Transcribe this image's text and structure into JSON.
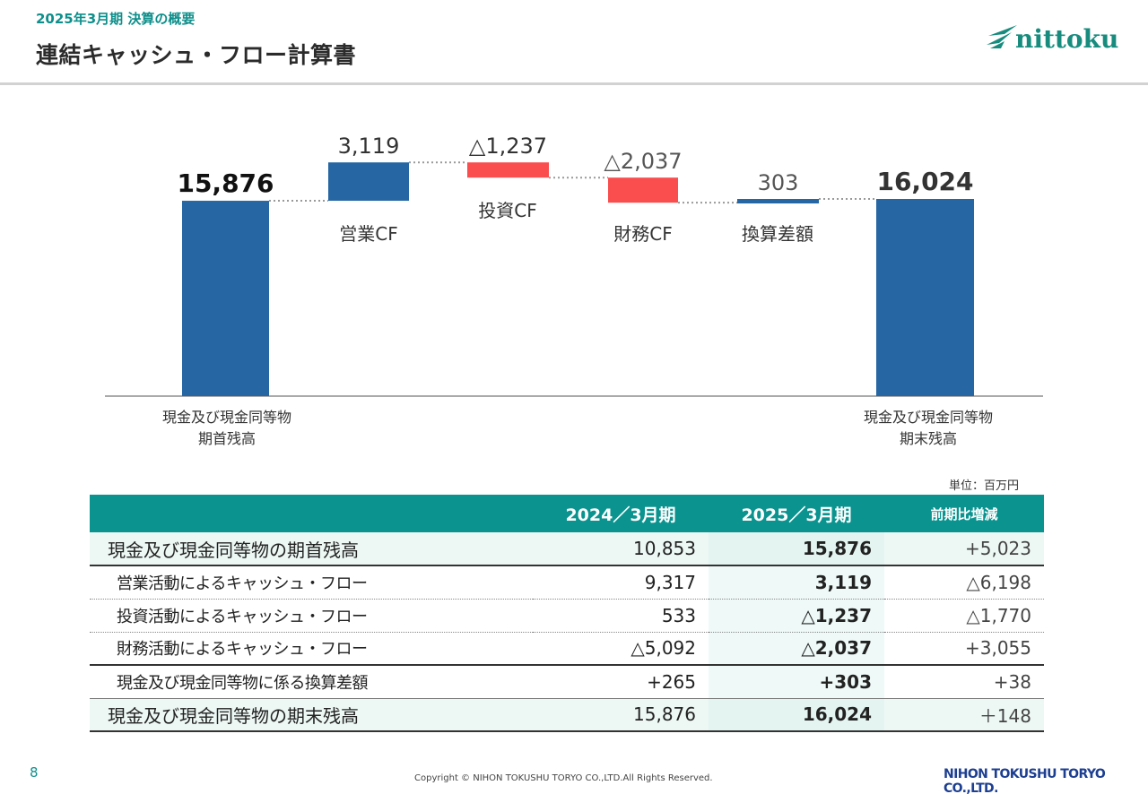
{
  "header": {
    "subtitle": "2025年3月期 決算の概要",
    "title": "連結キャッシュ・フロー計算書",
    "logo_text": "nittoku"
  },
  "chart_data": {
    "type": "bar",
    "variant": "waterfall",
    "steps": [
      {
        "name": "期首",
        "value": 15876,
        "label": "15,876",
        "kind": "total",
        "color": "#2566a3",
        "label_bold": true,
        "label_color": "#111111"
      },
      {
        "name": "営業CF",
        "value": 3119,
        "label": "3,119",
        "kind": "delta",
        "color": "#2566a3",
        "label_bold": false,
        "label_color": "#333333"
      },
      {
        "name": "投資CF",
        "value": -1237,
        "label": "△1,237",
        "kind": "delta",
        "color": "#fa4d4d",
        "label_bold": false,
        "label_color": "#333333"
      },
      {
        "name": "財務CF",
        "value": -2037,
        "label": "△2,037",
        "kind": "delta",
        "color": "#fa4d4d",
        "label_bold": false,
        "label_color": "#555555"
      },
      {
        "name": "換算差額",
        "value": 303,
        "label": "303",
        "kind": "delta",
        "color": "#2566a3",
        "label_bold": false,
        "label_color": "#555555"
      },
      {
        "name": "期末",
        "value": 16024,
        "label": "16,024",
        "kind": "total",
        "color": "#2566a3",
        "label_bold": true,
        "label_color": "#333333"
      }
    ],
    "categories": [
      "営業CF",
      "投資CF",
      "財務CF",
      "換算差額"
    ],
    "bottom_labels": {
      "start": [
        "現金及び現金同等物",
        "期首残高"
      ],
      "end": [
        "現金及び現金同等物",
        "期末残高"
      ]
    }
  },
  "table": {
    "unit": "単位：百万円",
    "headers": [
      "",
      "2024／3月期",
      "2025／3月期",
      "前期比増減"
    ],
    "rows": [
      {
        "label": "現金及び現金同等物の期首残高",
        "v2024": "10,853",
        "v2025": "15,876",
        "diff": "+5,023"
      },
      {
        "label": "営業活動によるキャッシュ・フロー",
        "v2024": "9,317",
        "v2025": "3,119",
        "diff": "△6,198"
      },
      {
        "label": "投資活動によるキャッシュ・フロー",
        "v2024": "533",
        "v2025": "△1,237",
        "diff": "△1,770"
      },
      {
        "label": "財務活動によるキャッシュ・フロー",
        "v2024": "△5,092",
        "v2025": "△2,037",
        "diff": "+3,055"
      },
      {
        "label": "現金及び現金同等物に係る換算差額",
        "v2024": "+265",
        "v2025": "+303",
        "diff": "+38"
      },
      {
        "label": "現金及び現金同等物の期末残高",
        "v2024": "15,876",
        "v2025": "16,024",
        "diff": "＋148"
      }
    ]
  },
  "footer": {
    "page_number": "8",
    "copyright": "Copyright © NIHON TOKUSHU TORYO CO.,LTD.All Rights Reserved.",
    "company": "NIHON TOKUSHU TORYO CO.,LTD."
  }
}
